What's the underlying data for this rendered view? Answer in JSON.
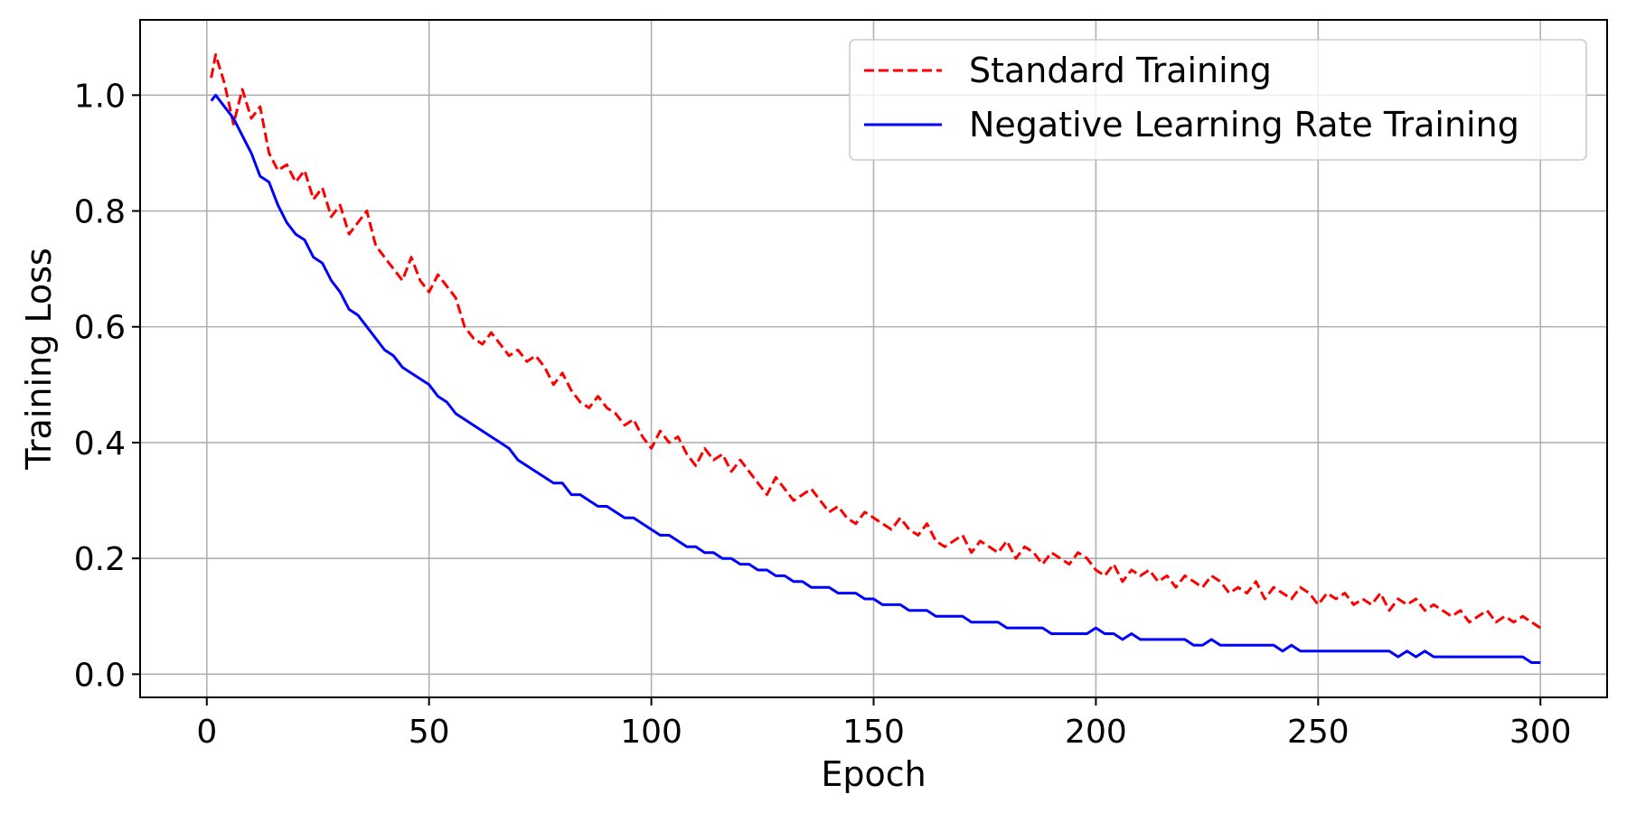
{
  "chart_data": {
    "type": "line",
    "title": "",
    "xlabel": "Epoch",
    "ylabel": "Training Loss",
    "xlim": [
      -15,
      315
    ],
    "ylim": [
      -0.04,
      1.13
    ],
    "xticks": [
      0,
      50,
      100,
      150,
      200,
      250,
      300
    ],
    "xtick_labels": [
      "0",
      "50",
      "100",
      "150",
      "200",
      "250",
      "300"
    ],
    "yticks": [
      0.0,
      0.2,
      0.4,
      0.6,
      0.8,
      1.0
    ],
    "ytick_labels": [
      "0.0",
      "0.2",
      "0.4",
      "0.6",
      "0.8",
      "1.0"
    ],
    "grid": true,
    "legend_position": "top-right",
    "series": [
      {
        "name": "Standard Training",
        "color": "#ff0000",
        "style": "dashed",
        "x": [
          1,
          2,
          4,
          6,
          8,
          10,
          12,
          14,
          16,
          18,
          20,
          22,
          24,
          26,
          28,
          30,
          32,
          34,
          36,
          38,
          40,
          42,
          44,
          46,
          48,
          50,
          52,
          54,
          56,
          58,
          60,
          62,
          64,
          66,
          68,
          70,
          72,
          74,
          76,
          78,
          80,
          82,
          84,
          86,
          88,
          90,
          92,
          94,
          96,
          98,
          100,
          102,
          104,
          106,
          108,
          110,
          112,
          114,
          116,
          118,
          120,
          122,
          124,
          126,
          128,
          130,
          132,
          134,
          136,
          138,
          140,
          142,
          144,
          146,
          148,
          150,
          152,
          154,
          156,
          158,
          160,
          162,
          164,
          166,
          168,
          170,
          172,
          174,
          176,
          178,
          180,
          182,
          184,
          186,
          188,
          190,
          192,
          194,
          196,
          198,
          200,
          202,
          204,
          206,
          208,
          210,
          212,
          214,
          216,
          218,
          220,
          222,
          224,
          226,
          228,
          230,
          232,
          234,
          236,
          238,
          240,
          242,
          244,
          246,
          248,
          250,
          252,
          254,
          256,
          258,
          260,
          262,
          264,
          266,
          268,
          270,
          272,
          274,
          276,
          278,
          280,
          282,
          284,
          286,
          288,
          290,
          292,
          294,
          296,
          298,
          300
        ],
        "y": [
          1.03,
          1.07,
          1.02,
          0.95,
          1.01,
          0.96,
          0.98,
          0.9,
          0.87,
          0.88,
          0.85,
          0.87,
          0.82,
          0.84,
          0.79,
          0.81,
          0.76,
          0.78,
          0.8,
          0.74,
          0.72,
          0.7,
          0.68,
          0.72,
          0.68,
          0.66,
          0.69,
          0.67,
          0.65,
          0.6,
          0.58,
          0.57,
          0.59,
          0.57,
          0.55,
          0.56,
          0.54,
          0.55,
          0.53,
          0.5,
          0.52,
          0.49,
          0.47,
          0.46,
          0.48,
          0.46,
          0.45,
          0.43,
          0.44,
          0.41,
          0.39,
          0.42,
          0.4,
          0.41,
          0.38,
          0.36,
          0.39,
          0.37,
          0.38,
          0.35,
          0.37,
          0.35,
          0.33,
          0.31,
          0.34,
          0.32,
          0.3,
          0.31,
          0.32,
          0.3,
          0.28,
          0.29,
          0.27,
          0.26,
          0.28,
          0.27,
          0.26,
          0.25,
          0.27,
          0.25,
          0.24,
          0.26,
          0.23,
          0.22,
          0.23,
          0.24,
          0.21,
          0.23,
          0.22,
          0.21,
          0.23,
          0.2,
          0.22,
          0.21,
          0.19,
          0.21,
          0.2,
          0.19,
          0.21,
          0.2,
          0.18,
          0.17,
          0.19,
          0.16,
          0.18,
          0.17,
          0.18,
          0.16,
          0.17,
          0.15,
          0.17,
          0.16,
          0.15,
          0.17,
          0.16,
          0.14,
          0.15,
          0.14,
          0.16,
          0.13,
          0.15,
          0.14,
          0.13,
          0.15,
          0.14,
          0.12,
          0.14,
          0.13,
          0.14,
          0.12,
          0.13,
          0.12,
          0.14,
          0.11,
          0.13,
          0.12,
          0.13,
          0.11,
          0.12,
          0.11,
          0.1,
          0.11,
          0.09,
          0.1,
          0.11,
          0.09,
          0.1,
          0.09,
          0.1,
          0.09,
          0.08
        ]
      },
      {
        "name": "Negative Learning Rate Training",
        "color": "#0000ff",
        "style": "solid",
        "x": [
          1,
          2,
          4,
          6,
          8,
          10,
          12,
          14,
          16,
          18,
          20,
          22,
          24,
          26,
          28,
          30,
          32,
          34,
          36,
          38,
          40,
          42,
          44,
          46,
          48,
          50,
          52,
          54,
          56,
          58,
          60,
          62,
          64,
          66,
          68,
          70,
          72,
          74,
          76,
          78,
          80,
          82,
          84,
          86,
          88,
          90,
          92,
          94,
          96,
          98,
          100,
          102,
          104,
          106,
          108,
          110,
          112,
          114,
          116,
          118,
          120,
          122,
          124,
          126,
          128,
          130,
          132,
          134,
          136,
          138,
          140,
          142,
          144,
          146,
          148,
          150,
          152,
          154,
          156,
          158,
          160,
          162,
          164,
          166,
          168,
          170,
          172,
          174,
          176,
          178,
          180,
          182,
          184,
          186,
          188,
          190,
          192,
          194,
          196,
          198,
          200,
          202,
          204,
          206,
          208,
          210,
          212,
          214,
          216,
          218,
          220,
          222,
          224,
          226,
          228,
          230,
          232,
          234,
          236,
          238,
          240,
          242,
          244,
          246,
          248,
          250,
          252,
          254,
          256,
          258,
          260,
          262,
          264,
          266,
          268,
          270,
          272,
          274,
          276,
          278,
          280,
          282,
          284,
          286,
          288,
          290,
          292,
          294,
          296,
          298,
          300
        ],
        "y": [
          0.99,
          1.0,
          0.98,
          0.96,
          0.93,
          0.9,
          0.86,
          0.85,
          0.81,
          0.78,
          0.76,
          0.75,
          0.72,
          0.71,
          0.68,
          0.66,
          0.63,
          0.62,
          0.6,
          0.58,
          0.56,
          0.55,
          0.53,
          0.52,
          0.51,
          0.5,
          0.48,
          0.47,
          0.45,
          0.44,
          0.43,
          0.42,
          0.41,
          0.4,
          0.39,
          0.37,
          0.36,
          0.35,
          0.34,
          0.33,
          0.33,
          0.31,
          0.31,
          0.3,
          0.29,
          0.29,
          0.28,
          0.27,
          0.27,
          0.26,
          0.25,
          0.24,
          0.24,
          0.23,
          0.22,
          0.22,
          0.21,
          0.21,
          0.2,
          0.2,
          0.19,
          0.19,
          0.18,
          0.18,
          0.17,
          0.17,
          0.16,
          0.16,
          0.15,
          0.15,
          0.15,
          0.14,
          0.14,
          0.14,
          0.13,
          0.13,
          0.12,
          0.12,
          0.12,
          0.11,
          0.11,
          0.11,
          0.1,
          0.1,
          0.1,
          0.1,
          0.09,
          0.09,
          0.09,
          0.09,
          0.08,
          0.08,
          0.08,
          0.08,
          0.08,
          0.07,
          0.07,
          0.07,
          0.07,
          0.07,
          0.08,
          0.07,
          0.07,
          0.06,
          0.07,
          0.06,
          0.06,
          0.06,
          0.06,
          0.06,
          0.06,
          0.05,
          0.05,
          0.06,
          0.05,
          0.05,
          0.05,
          0.05,
          0.05,
          0.05,
          0.05,
          0.04,
          0.05,
          0.04,
          0.04,
          0.04,
          0.04,
          0.04,
          0.04,
          0.04,
          0.04,
          0.04,
          0.04,
          0.04,
          0.03,
          0.04,
          0.03,
          0.04,
          0.03,
          0.03,
          0.03,
          0.03,
          0.03,
          0.03,
          0.03,
          0.03,
          0.03,
          0.03,
          0.03,
          0.02,
          0.02
        ]
      }
    ]
  }
}
